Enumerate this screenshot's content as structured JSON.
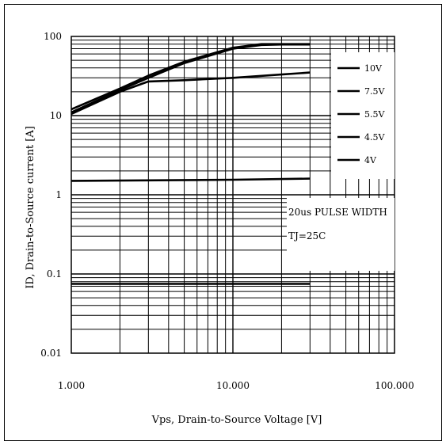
{
  "chart_data": {
    "type": "line",
    "x_scale": "log",
    "y_scale": "log",
    "xlabel": "Vps, Drain-to-Source Voltage [V]",
    "ylabel": "ID, Drain-to-Source current [A]",
    "xlim": [
      1,
      100
    ],
    "ylim": [
      0.01,
      100
    ],
    "x_tick_labels": [
      "1.000",
      "10.000",
      "100.000"
    ],
    "y_tick_labels": [
      "100",
      "10",
      "1",
      "0.1",
      "0.01"
    ],
    "grid": true,
    "legend_position": "top-right",
    "annotations": [
      "20us PULSE WIDTH",
      "TJ=25C"
    ],
    "series": [
      {
        "name": "10V",
        "x": [
          1,
          2,
          3,
          5,
          10,
          15,
          20,
          30
        ],
        "y": [
          12,
          22,
          32,
          48,
          72,
          80,
          80,
          80
        ]
      },
      {
        "name": "7.5V",
        "x": [
          1,
          2,
          3,
          5,
          10,
          15,
          20,
          30
        ],
        "y": [
          11,
          21,
          30,
          46,
          70,
          78,
          79,
          79
        ]
      },
      {
        "name": "5.5V",
        "x": [
          1,
          2,
          3,
          5,
          10,
          20,
          30
        ],
        "y": [
          10.5,
          20,
          27,
          28,
          30,
          33,
          35
        ]
      },
      {
        "name": "4.5V",
        "x": [
          1,
          10,
          30
        ],
        "y": [
          1.5,
          1.55,
          1.6
        ]
      },
      {
        "name": "4V",
        "x": [
          1,
          10,
          30
        ],
        "y": [
          0.075,
          0.075,
          0.075
        ]
      }
    ],
    "colors": {
      "line": "#000000",
      "grid": "#000000",
      "background": "#ffffff"
    }
  }
}
